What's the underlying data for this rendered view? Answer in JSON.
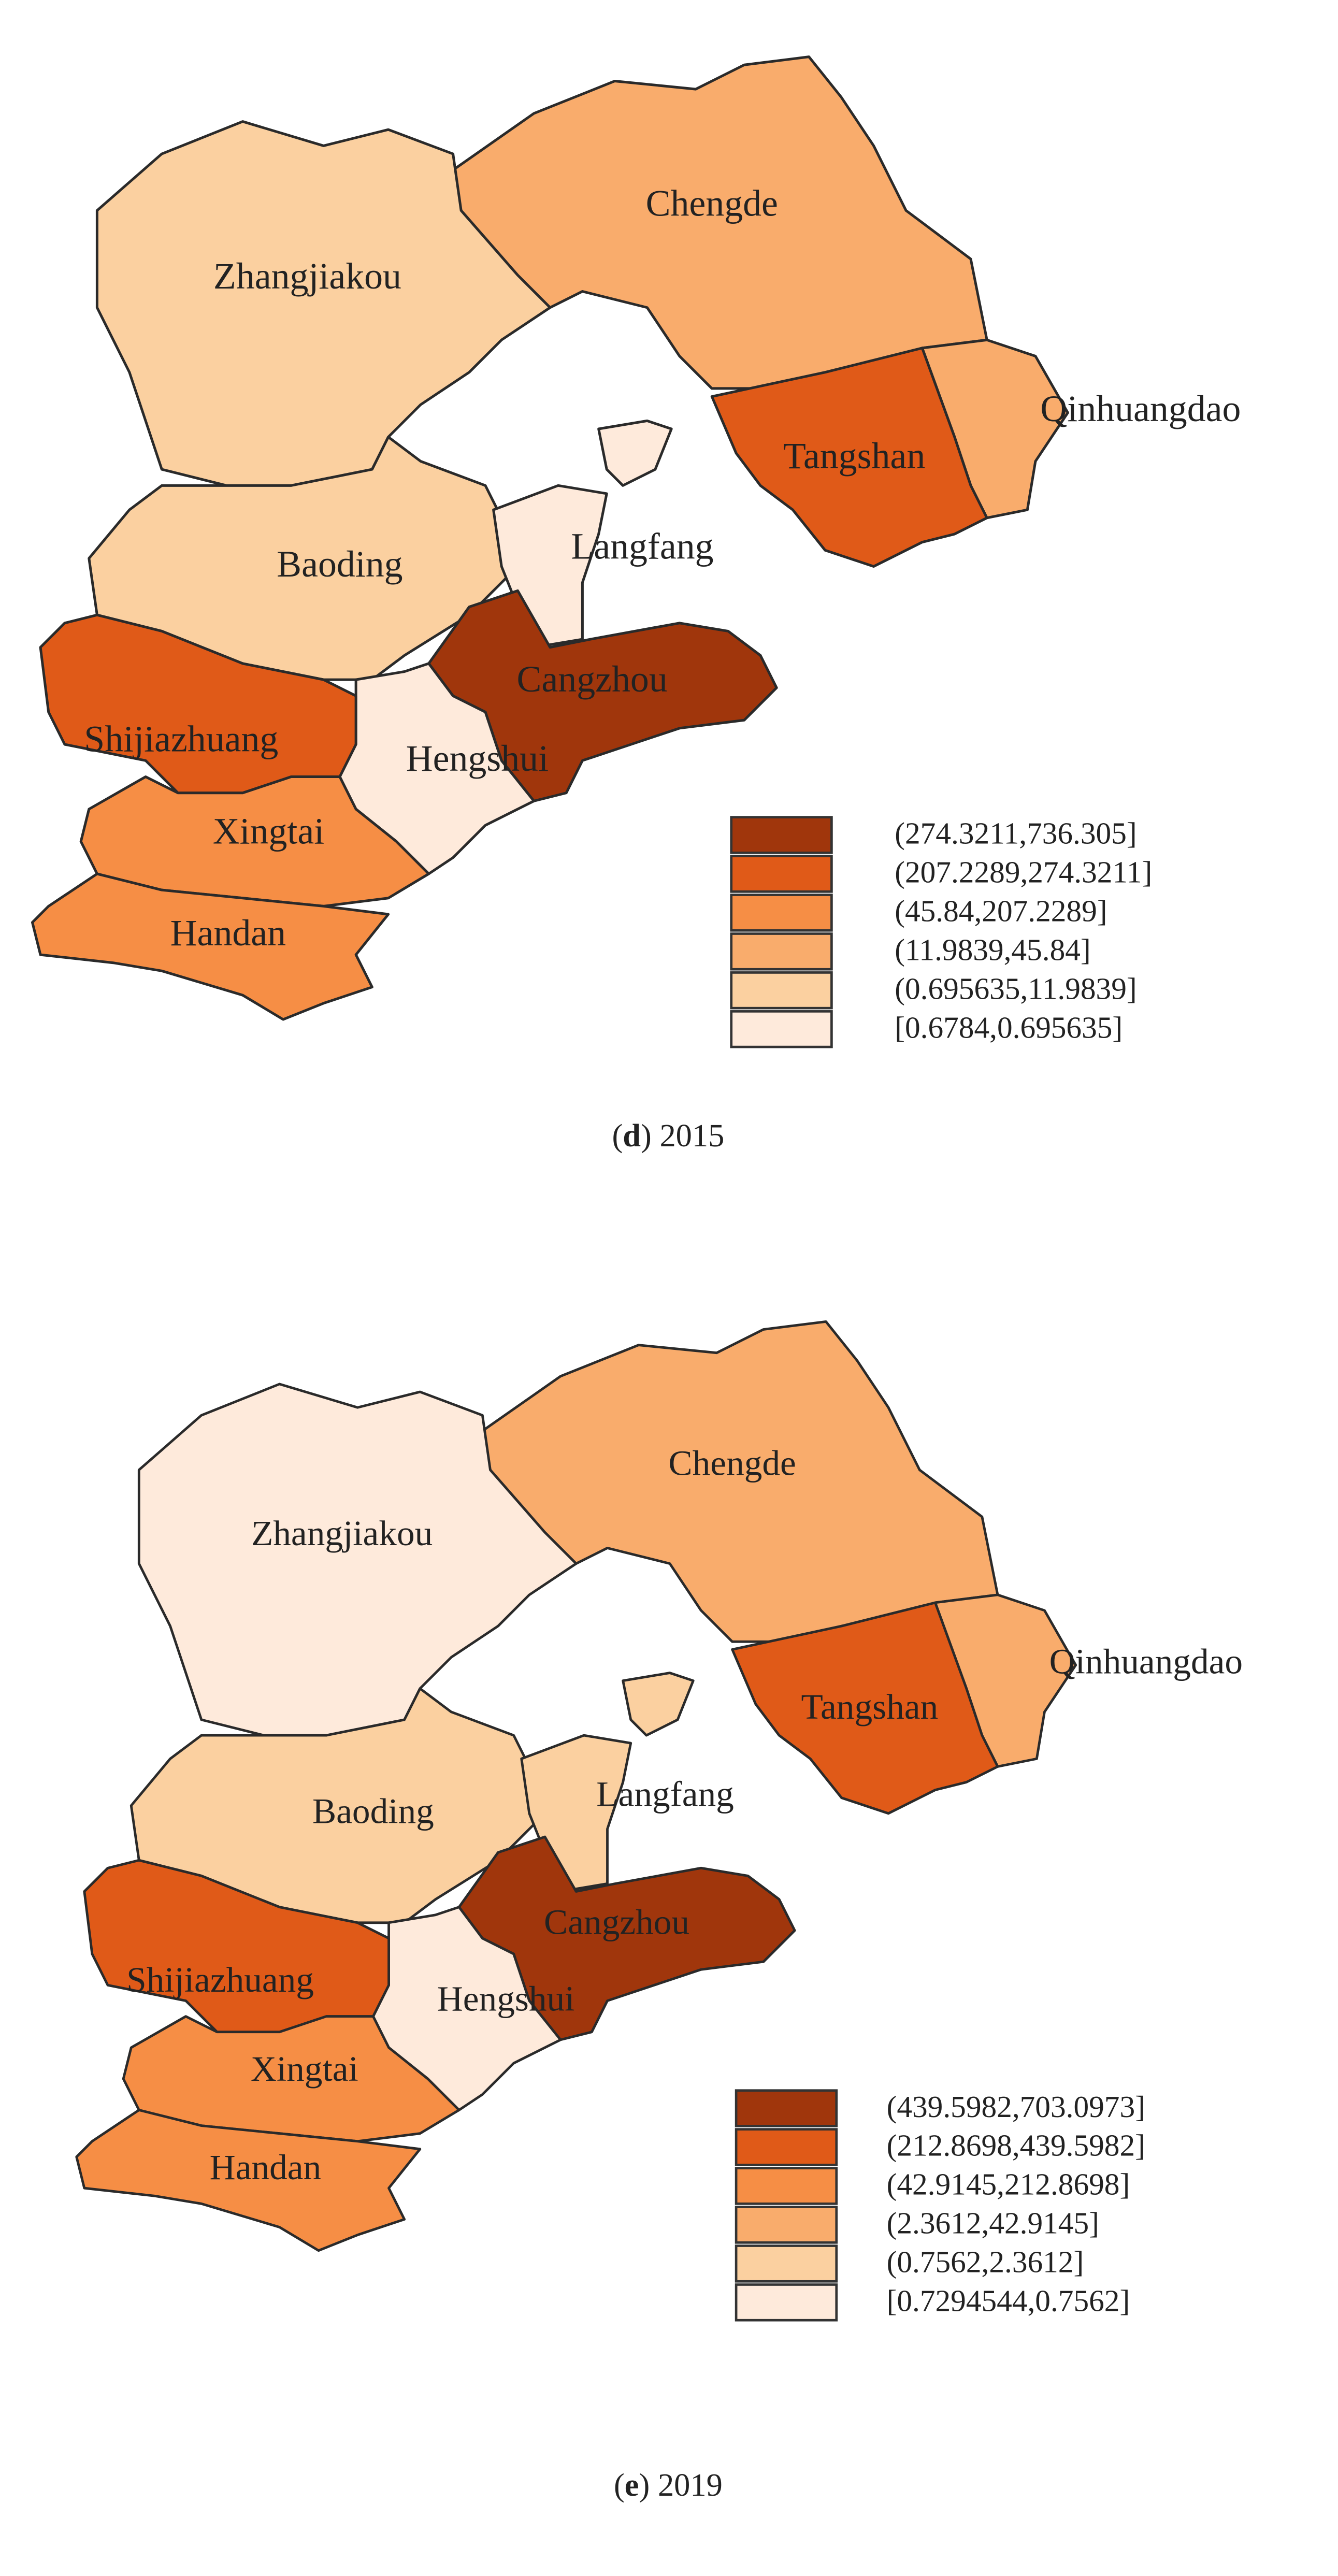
{
  "maps": [
    {
      "regions": [
        {
          "name": "Chengde",
          "color": "#f9ac6c"
        },
        {
          "name": "Zhangjiakou",
          "color": "#fbd0a0"
        },
        {
          "name": "Qinhuangdao",
          "color": "#f9ac6c"
        },
        {
          "name": "Tangshan",
          "color": "#e05a18"
        },
        {
          "name": "Baoding",
          "color": "#fbd0a0"
        },
        {
          "name": "Langfang",
          "color": "#feeadb"
        },
        {
          "name": "Cangzhou",
          "color": "#a0360c"
        },
        {
          "name": "Hengshui",
          "color": "#feeadb"
        },
        {
          "name": "Shijiazhuang",
          "color": "#e05a18"
        },
        {
          "name": "Xingtai",
          "color": "#f68e45"
        },
        {
          "name": "Handan",
          "color": "#f68e45"
        }
      ],
      "legend": [
        {
          "label": "(274.3211,736.305]",
          "color": "#a0360c"
        },
        {
          "label": "(207.2289,274.3211]",
          "color": "#e05a18"
        },
        {
          "label": "(45.84,207.2289]",
          "color": "#f68e45"
        },
        {
          "label": "(11.9839,45.84]",
          "color": "#f9ac6c"
        },
        {
          "label": "(0.695635,11.9839]",
          "color": "#fbd0a0"
        },
        {
          "label": "[0.6784,0.695635]",
          "color": "#feeadb"
        }
      ],
      "caption": [
        "(",
        "d",
        ") 2015"
      ]
    },
    {
      "regions": [
        {
          "name": "Chengde",
          "color": "#f9ac6c"
        },
        {
          "name": "Zhangjiakou",
          "color": "#feeadb"
        },
        {
          "name": "Qinhuangdao",
          "color": "#f9ac6c"
        },
        {
          "name": "Tangshan",
          "color": "#e05a18"
        },
        {
          "name": "Baoding",
          "color": "#fbd0a0"
        },
        {
          "name": "Langfang",
          "color": "#fbd0a0"
        },
        {
          "name": "Cangzhou",
          "color": "#a0360c"
        },
        {
          "name": "Hengshui",
          "color": "#feeadb"
        },
        {
          "name": "Shijiazhuang",
          "color": "#e05a18"
        },
        {
          "name": "Xingtai",
          "color": "#f68e45"
        },
        {
          "name": "Handan",
          "color": "#f68e45"
        }
      ],
      "legend": [
        {
          "label": "(439.5982,703.0973]",
          "color": "#a0360c"
        },
        {
          "label": "(212.8698,439.5982]",
          "color": "#e05a18"
        },
        {
          "label": "(42.9145,212.8698]",
          "color": "#f68e45"
        },
        {
          "label": "(2.3612,42.9145]",
          "color": "#f9ac6c"
        },
        {
          "label": "(0.7562,2.3612]",
          "color": "#fbd0a0"
        },
        {
          "label": "[0.7294544,0.7562]",
          "color": "#feeadb"
        }
      ],
      "caption": [
        "(",
        "e",
        ") 2019"
      ]
    }
  ]
}
